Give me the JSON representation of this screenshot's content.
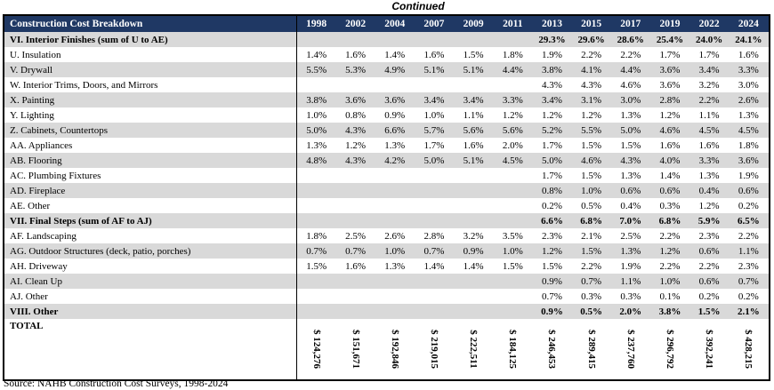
{
  "page": {
    "continued_label": "Continued",
    "source": "Source: NAHB Construction Cost Surveys, 1998-2024"
  },
  "colors": {
    "header_bg": "#1F3864",
    "header_text": "#FFFFFF",
    "band_gray": "#D9D9D9",
    "border": "#000000"
  },
  "table": {
    "title": "Construction Cost Breakdown",
    "years": [
      "1998",
      "2002",
      "2004",
      "2007",
      "2009",
      "2011",
      "2013",
      "2015",
      "2017",
      "2019",
      "2022",
      "2024"
    ],
    "rows": [
      {
        "label": "VI. Interior Finishes (sum of U to AE)",
        "section": true,
        "values": [
          "",
          "",
          "",
          "",
          "",
          "",
          "29.3%",
          "29.6%",
          "28.6%",
          "25.4%",
          "24.0%",
          "24.1%"
        ]
      },
      {
        "label": "U. Insulation",
        "section": false,
        "values": [
          "1.4%",
          "1.6%",
          "1.4%",
          "1.6%",
          "1.5%",
          "1.8%",
          "1.9%",
          "2.2%",
          "2.2%",
          "1.7%",
          "1.7%",
          "1.6%"
        ]
      },
      {
        "label": "V. Drywall",
        "section": false,
        "values": [
          "5.5%",
          "5.3%",
          "4.9%",
          "5.1%",
          "5.1%",
          "4.4%",
          "3.8%",
          "4.1%",
          "4.4%",
          "3.6%",
          "3.4%",
          "3.3%"
        ]
      },
      {
        "label": "W. Interior Trims, Doors, and Mirrors",
        "section": false,
        "values": [
          "",
          "",
          "",
          "",
          "",
          "",
          "4.3%",
          "4.3%",
          "4.6%",
          "3.6%",
          "3.2%",
          "3.0%"
        ]
      },
      {
        "label": "X. Painting",
        "section": false,
        "values": [
          "3.8%",
          "3.6%",
          "3.6%",
          "3.4%",
          "3.4%",
          "3.3%",
          "3.4%",
          "3.1%",
          "3.0%",
          "2.8%",
          "2.2%",
          "2.6%"
        ]
      },
      {
        "label": "Y. Lighting",
        "section": false,
        "values": [
          "1.0%",
          "0.8%",
          "0.9%",
          "1.0%",
          "1.1%",
          "1.2%",
          "1.2%",
          "1.2%",
          "1.3%",
          "1.2%",
          "1.1%",
          "1.3%"
        ]
      },
      {
        "label": "Z. Cabinets, Countertops",
        "section": false,
        "values": [
          "5.0%",
          "4.3%",
          "6.6%",
          "5.7%",
          "5.6%",
          "5.6%",
          "5.2%",
          "5.5%",
          "5.0%",
          "4.6%",
          "4.5%",
          "4.5%"
        ]
      },
      {
        "label": "AA. Appliances",
        "section": false,
        "values": [
          "1.3%",
          "1.2%",
          "1.3%",
          "1.7%",
          "1.6%",
          "2.0%",
          "1.7%",
          "1.5%",
          "1.5%",
          "1.6%",
          "1.6%",
          "1.8%"
        ]
      },
      {
        "label": "AB. Flooring",
        "section": false,
        "values": [
          "4.8%",
          "4.3%",
          "4.2%",
          "5.0%",
          "5.1%",
          "4.5%",
          "5.0%",
          "4.6%",
          "4.3%",
          "4.0%",
          "3.3%",
          "3.6%"
        ]
      },
      {
        "label": "AC. Plumbing Fixtures",
        "section": false,
        "values": [
          "",
          "",
          "",
          "",
          "",
          "",
          "1.7%",
          "1.5%",
          "1.3%",
          "1.4%",
          "1.3%",
          "1.9%"
        ]
      },
      {
        "label": "AD. Fireplace",
        "section": false,
        "values": [
          "",
          "",
          "",
          "",
          "",
          "",
          "0.8%",
          "1.0%",
          "0.6%",
          "0.6%",
          "0.4%",
          "0.6%"
        ]
      },
      {
        "label": "AE. Other",
        "section": false,
        "values": [
          "",
          "",
          "",
          "",
          "",
          "",
          "0.2%",
          "0.5%",
          "0.4%",
          "0.3%",
          "1.2%",
          "0.2%"
        ]
      },
      {
        "label": "VII. Final Steps (sum of AF to AJ)",
        "section": true,
        "values": [
          "",
          "",
          "",
          "",
          "",
          "",
          "6.6%",
          "6.8%",
          "7.0%",
          "6.8%",
          "5.9%",
          "6.5%"
        ]
      },
      {
        "label": "AF. Landscaping",
        "section": false,
        "values": [
          "1.8%",
          "2.5%",
          "2.6%",
          "2.8%",
          "3.2%",
          "3.5%",
          "2.3%",
          "2.1%",
          "2.5%",
          "2.2%",
          "2.3%",
          "2.2%"
        ]
      },
      {
        "label": "AG. Outdoor Structures (deck, patio, porches)",
        "section": false,
        "values": [
          "0.7%",
          "0.7%",
          "1.0%",
          "0.7%",
          "0.9%",
          "1.0%",
          "1.2%",
          "1.5%",
          "1.3%",
          "1.2%",
          "0.6%",
          "1.1%"
        ]
      },
      {
        "label": "AH. Driveway",
        "section": false,
        "values": [
          "1.5%",
          "1.6%",
          "1.3%",
          "1.4%",
          "1.4%",
          "1.5%",
          "1.5%",
          "2.2%",
          "1.9%",
          "2.2%",
          "2.2%",
          "2.3%"
        ]
      },
      {
        "label": "AI. Clean Up",
        "section": false,
        "values": [
          "",
          "",
          "",
          "",
          "",
          "",
          "0.9%",
          "0.7%",
          "1.1%",
          "1.0%",
          "0.6%",
          "0.7%"
        ]
      },
      {
        "label": "AJ. Other",
        "section": false,
        "values": [
          "",
          "",
          "",
          "",
          "",
          "",
          "0.7%",
          "0.3%",
          "0.3%",
          "0.1%",
          "0.2%",
          "0.2%"
        ]
      },
      {
        "label": "VIII. Other",
        "section": true,
        "values": [
          "",
          "",
          "",
          "",
          "",
          "",
          "0.9%",
          "0.5%",
          "2.0%",
          "3.8%",
          "1.5%",
          "2.1%"
        ]
      }
    ],
    "total_row": {
      "label": "TOTAL",
      "values": [
        "$ 124,276",
        "$ 151,671",
        "$ 192,846",
        "$ 219,015",
        "$ 222,511",
        "$ 184,125",
        "$ 246,453",
        "$ 289,415",
        "$ 237,760",
        "$ 296,792",
        "$ 392,241",
        "$ 428,215"
      ]
    }
  }
}
